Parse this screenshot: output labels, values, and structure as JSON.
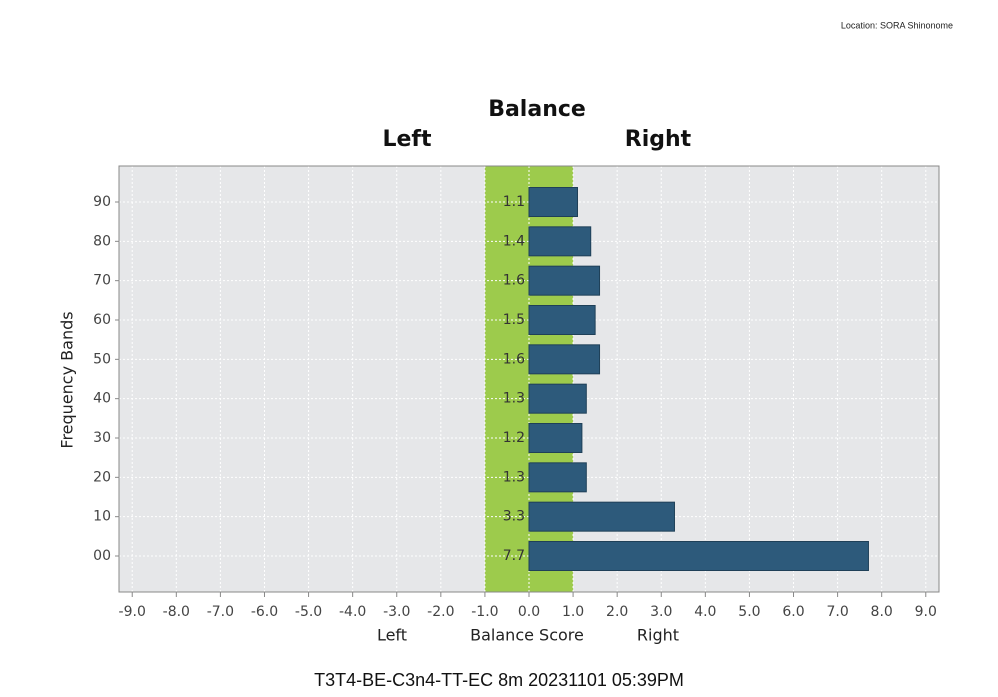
{
  "location": "Location: SORA Shinonome",
  "chart_data": {
    "type": "bar",
    "orientation": "horizontal",
    "title": "Balance",
    "left_heading": "Left",
    "right_heading": "Right",
    "x_label_left": "Left",
    "x_label": "Balance Score",
    "x_label_right": "Right",
    "y_label": "Frequency Bands",
    "footer": "T3T4-BE-C3n4-TT-EC 8m 20231101 05:39PM",
    "categories": [
      "90",
      "80",
      "70",
      "60",
      "50",
      "40",
      "30",
      "20",
      "10",
      "00"
    ],
    "values": [
      1.1,
      1.4,
      1.6,
      1.5,
      1.6,
      1.3,
      1.2,
      1.3,
      3.3,
      7.7
    ],
    "color": "#2d5a7b",
    "band": [
      -1,
      1
    ],
    "band_color": "#9dcb4c",
    "xlim": [
      -9.3,
      9.3
    ],
    "xticks": [
      {
        "value": -9,
        "label": "-9.0"
      },
      {
        "value": -8,
        "label": "-8.0"
      },
      {
        "value": -7,
        "label": "-7.0"
      },
      {
        "value": -6,
        "label": "-6.0"
      },
      {
        "value": -5,
        "label": "-5.0"
      },
      {
        "value": -4,
        "label": "-4.0"
      },
      {
        "value": -3,
        "label": "-3.0"
      },
      {
        "value": -2,
        "label": "-2.0"
      },
      {
        "value": -1,
        "label": "-1.0"
      },
      {
        "value": 0,
        "label": "0.0"
      },
      {
        "value": 1,
        "label": "1.0"
      },
      {
        "value": 2,
        "label": "2.0"
      },
      {
        "value": 3,
        "label": "3.0"
      },
      {
        "value": 4,
        "label": "4.0"
      },
      {
        "value": 5,
        "label": "5.0"
      },
      {
        "value": 6,
        "label": "6.0"
      },
      {
        "value": 7,
        "label": "7.0"
      },
      {
        "value": 8,
        "label": "8.0"
      },
      {
        "value": 9,
        "label": "9.0"
      }
    ],
    "grid": true
  }
}
